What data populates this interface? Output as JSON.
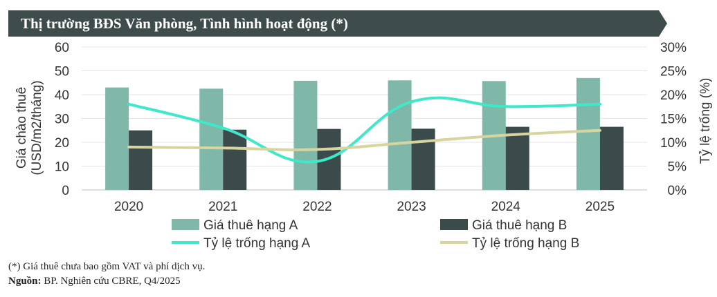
{
  "header": {
    "title": "Thị trường BĐS Văn phòng, Tình hình hoạt động (*)"
  },
  "chart_data": {
    "type": "bar",
    "categories": [
      "2020",
      "2021",
      "2022",
      "2023",
      "2024",
      "2025"
    ],
    "series": [
      {
        "name": "Giá thuê hạng A",
        "type": "bar",
        "axis": "left",
        "color": "#7fb8a8",
        "values": [
          43,
          42.5,
          45.8,
          46,
          45.7,
          47
        ]
      },
      {
        "name": "Giá thuê hạng B",
        "type": "bar",
        "axis": "left",
        "color": "#3b4a4a",
        "values": [
          25,
          25.3,
          25.6,
          25.7,
          26.5,
          26.5
        ]
      },
      {
        "name": "Tỷ lệ trống hạng A",
        "type": "line",
        "axis": "right",
        "color": "#3ee8c8",
        "values": [
          18,
          13,
          6,
          18.5,
          17.5,
          18
        ]
      },
      {
        "name": "Tỷ lệ trống hạng B",
        "type": "line",
        "axis": "right",
        "color": "#d8d4a0",
        "values": [
          9,
          8.8,
          8.5,
          10,
          11.5,
          12.5
        ]
      }
    ],
    "y_left": {
      "label_line1": "Giá chào thuê",
      "label_line2": "(USD/m2/tháng)",
      "min": 0,
      "max": 60,
      "step": 10,
      "ticks": [
        "0",
        "10",
        "20",
        "30",
        "40",
        "50",
        "60"
      ]
    },
    "y_right": {
      "label": "Tỷ lệ trống (%)",
      "min": 0,
      "max": 30,
      "step": 5,
      "ticks": [
        "0%",
        "5%",
        "10%",
        "15%",
        "20%",
        "25%",
        "30%"
      ]
    },
    "grid": true,
    "legend_position": "bottom"
  },
  "footer": {
    "note": "(*) Giá thuê chưa bao gồm VAT và phí dịch vụ.",
    "source_label": "Nguồn:",
    "source_text": " BP. Nghiên cứu CBRE, Q4/2025"
  },
  "colors": {
    "banner": "#3e4c4c"
  }
}
